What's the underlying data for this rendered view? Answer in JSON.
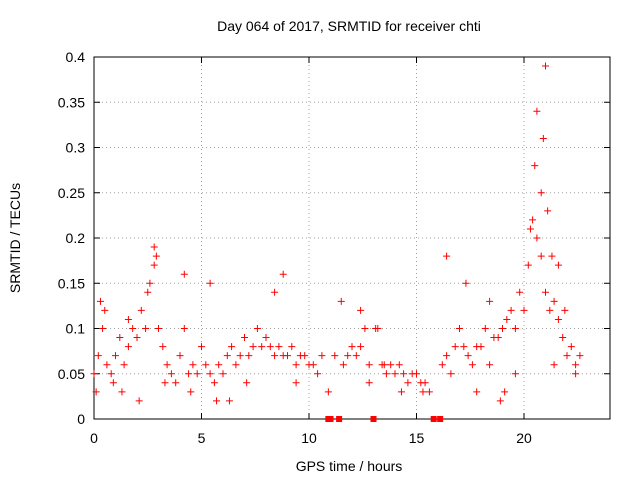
{
  "chart_data": {
    "type": "scatter",
    "title": "Day 064 of 2017, SRMTID for receiver chti",
    "xlabel": "GPS time / hours",
    "ylabel": "SRMTID / TECUs",
    "xlim": [
      0,
      24
    ],
    "ylim": [
      0,
      0.4
    ],
    "xticks": [
      "0",
      "5",
      "10",
      "15",
      "20"
    ],
    "yticks": [
      "0",
      "0.05",
      "0.1",
      "0.15",
      "0.2",
      "0.25",
      "0.3",
      "0.35",
      "0.4"
    ],
    "grid": true,
    "marker": "+",
    "color": "#ff0000",
    "zero_markers": {
      "marker": "square",
      "x": [
        10.9,
        11.0,
        11.4,
        13.0,
        15.8,
        16.1
      ],
      "y": 0
    },
    "series": [
      {
        "name": "SRMTID",
        "x": [
          0.0,
          0.2,
          0.4,
          0.6,
          0.8,
          1.0,
          1.2,
          1.4,
          1.6,
          1.8,
          2.0,
          2.2,
          2.4,
          2.6,
          2.8,
          3.0,
          3.2,
          3.4,
          3.6,
          3.8,
          4.0,
          4.2,
          4.4,
          4.6,
          4.8,
          5.0,
          5.2,
          5.4,
          5.6,
          5.8,
          6.0,
          6.2,
          6.4,
          6.6,
          6.8,
          7.0,
          7.2,
          7.4,
          7.6,
          7.8,
          8.0,
          8.2,
          8.4,
          8.6,
          8.8,
          9.0,
          9.2,
          9.4,
          9.6,
          9.8,
          10.0,
          10.2,
          10.4,
          10.6,
          11.2,
          11.6,
          11.8,
          12.0,
          12.2,
          12.4,
          12.6,
          12.8,
          13.2,
          13.4,
          13.6,
          13.8,
          14.0,
          14.2,
          14.4,
          14.6,
          14.8,
          15.0,
          15.2,
          15.4,
          15.6,
          16.2,
          16.4,
          16.6,
          16.8,
          17.0,
          17.2,
          17.4,
          17.6,
          17.8,
          18.0,
          18.2,
          18.4,
          18.6,
          18.8,
          19.0,
          19.2,
          19.4,
          19.6,
          19.8,
          20.0,
          20.2,
          20.4,
          20.6,
          20.8,
          21.0,
          21.2,
          21.4,
          21.6,
          21.8,
          22.0,
          22.2,
          22.4,
          22.6,
          0.3,
          0.5,
          1.6,
          2.5,
          2.8,
          2.9,
          4.2,
          5.4,
          8.4,
          8.8,
          11.5,
          12.4,
          13.1,
          16.4,
          17.3,
          18.4,
          20.3,
          20.5,
          20.6,
          20.8,
          20.9,
          21.0,
          21.1,
          21.3,
          21.6,
          21.9,
          0.1,
          0.9,
          3.3,
          4.5,
          7.1,
          9.4,
          12.8,
          14.3,
          17.8,
          19.6,
          22.4,
          2.1,
          6.3,
          10.9,
          15.3,
          19.1,
          21.4,
          18.9,
          13.5,
          5.7,
          1.3
        ],
        "y": [
          0.05,
          0.07,
          0.1,
          0.06,
          0.05,
          0.07,
          0.09,
          0.06,
          0.08,
          0.1,
          0.09,
          0.12,
          0.1,
          0.15,
          0.17,
          0.1,
          0.08,
          0.06,
          0.05,
          0.04,
          0.07,
          0.1,
          0.05,
          0.06,
          0.05,
          0.08,
          0.06,
          0.05,
          0.04,
          0.06,
          0.05,
          0.07,
          0.08,
          0.06,
          0.07,
          0.09,
          0.07,
          0.08,
          0.1,
          0.08,
          0.09,
          0.08,
          0.07,
          0.08,
          0.07,
          0.07,
          0.08,
          0.06,
          0.07,
          0.07,
          0.06,
          0.06,
          0.05,
          0.07,
          0.07,
          0.06,
          0.07,
          0.08,
          0.07,
          0.08,
          0.1,
          0.06,
          0.1,
          0.06,
          0.05,
          0.06,
          0.05,
          0.06,
          0.05,
          0.04,
          0.05,
          0.05,
          0.04,
          0.04,
          0.03,
          0.06,
          0.07,
          0.05,
          0.08,
          0.1,
          0.08,
          0.07,
          0.06,
          0.08,
          0.08,
          0.1,
          0.06,
          0.09,
          0.09,
          0.1,
          0.11,
          0.12,
          0.1,
          0.14,
          0.12,
          0.17,
          0.22,
          0.2,
          0.18,
          0.14,
          0.12,
          0.13,
          0.11,
          0.09,
          0.07,
          0.08,
          0.06,
          0.07,
          0.13,
          0.12,
          0.11,
          0.14,
          0.19,
          0.18,
          0.16,
          0.15,
          0.14,
          0.16,
          0.13,
          0.12,
          0.1,
          0.18,
          0.15,
          0.13,
          0.21,
          0.28,
          0.34,
          0.25,
          0.31,
          0.39,
          0.23,
          0.18,
          0.17,
          0.12,
          0.03,
          0.04,
          0.04,
          0.03,
          0.04,
          0.04,
          0.04,
          0.03,
          0.03,
          0.05,
          0.05,
          0.02,
          0.02,
          0.03,
          0.03,
          0.03,
          0.06,
          0.02,
          0.06,
          0.02,
          0.03
        ]
      }
    ]
  }
}
